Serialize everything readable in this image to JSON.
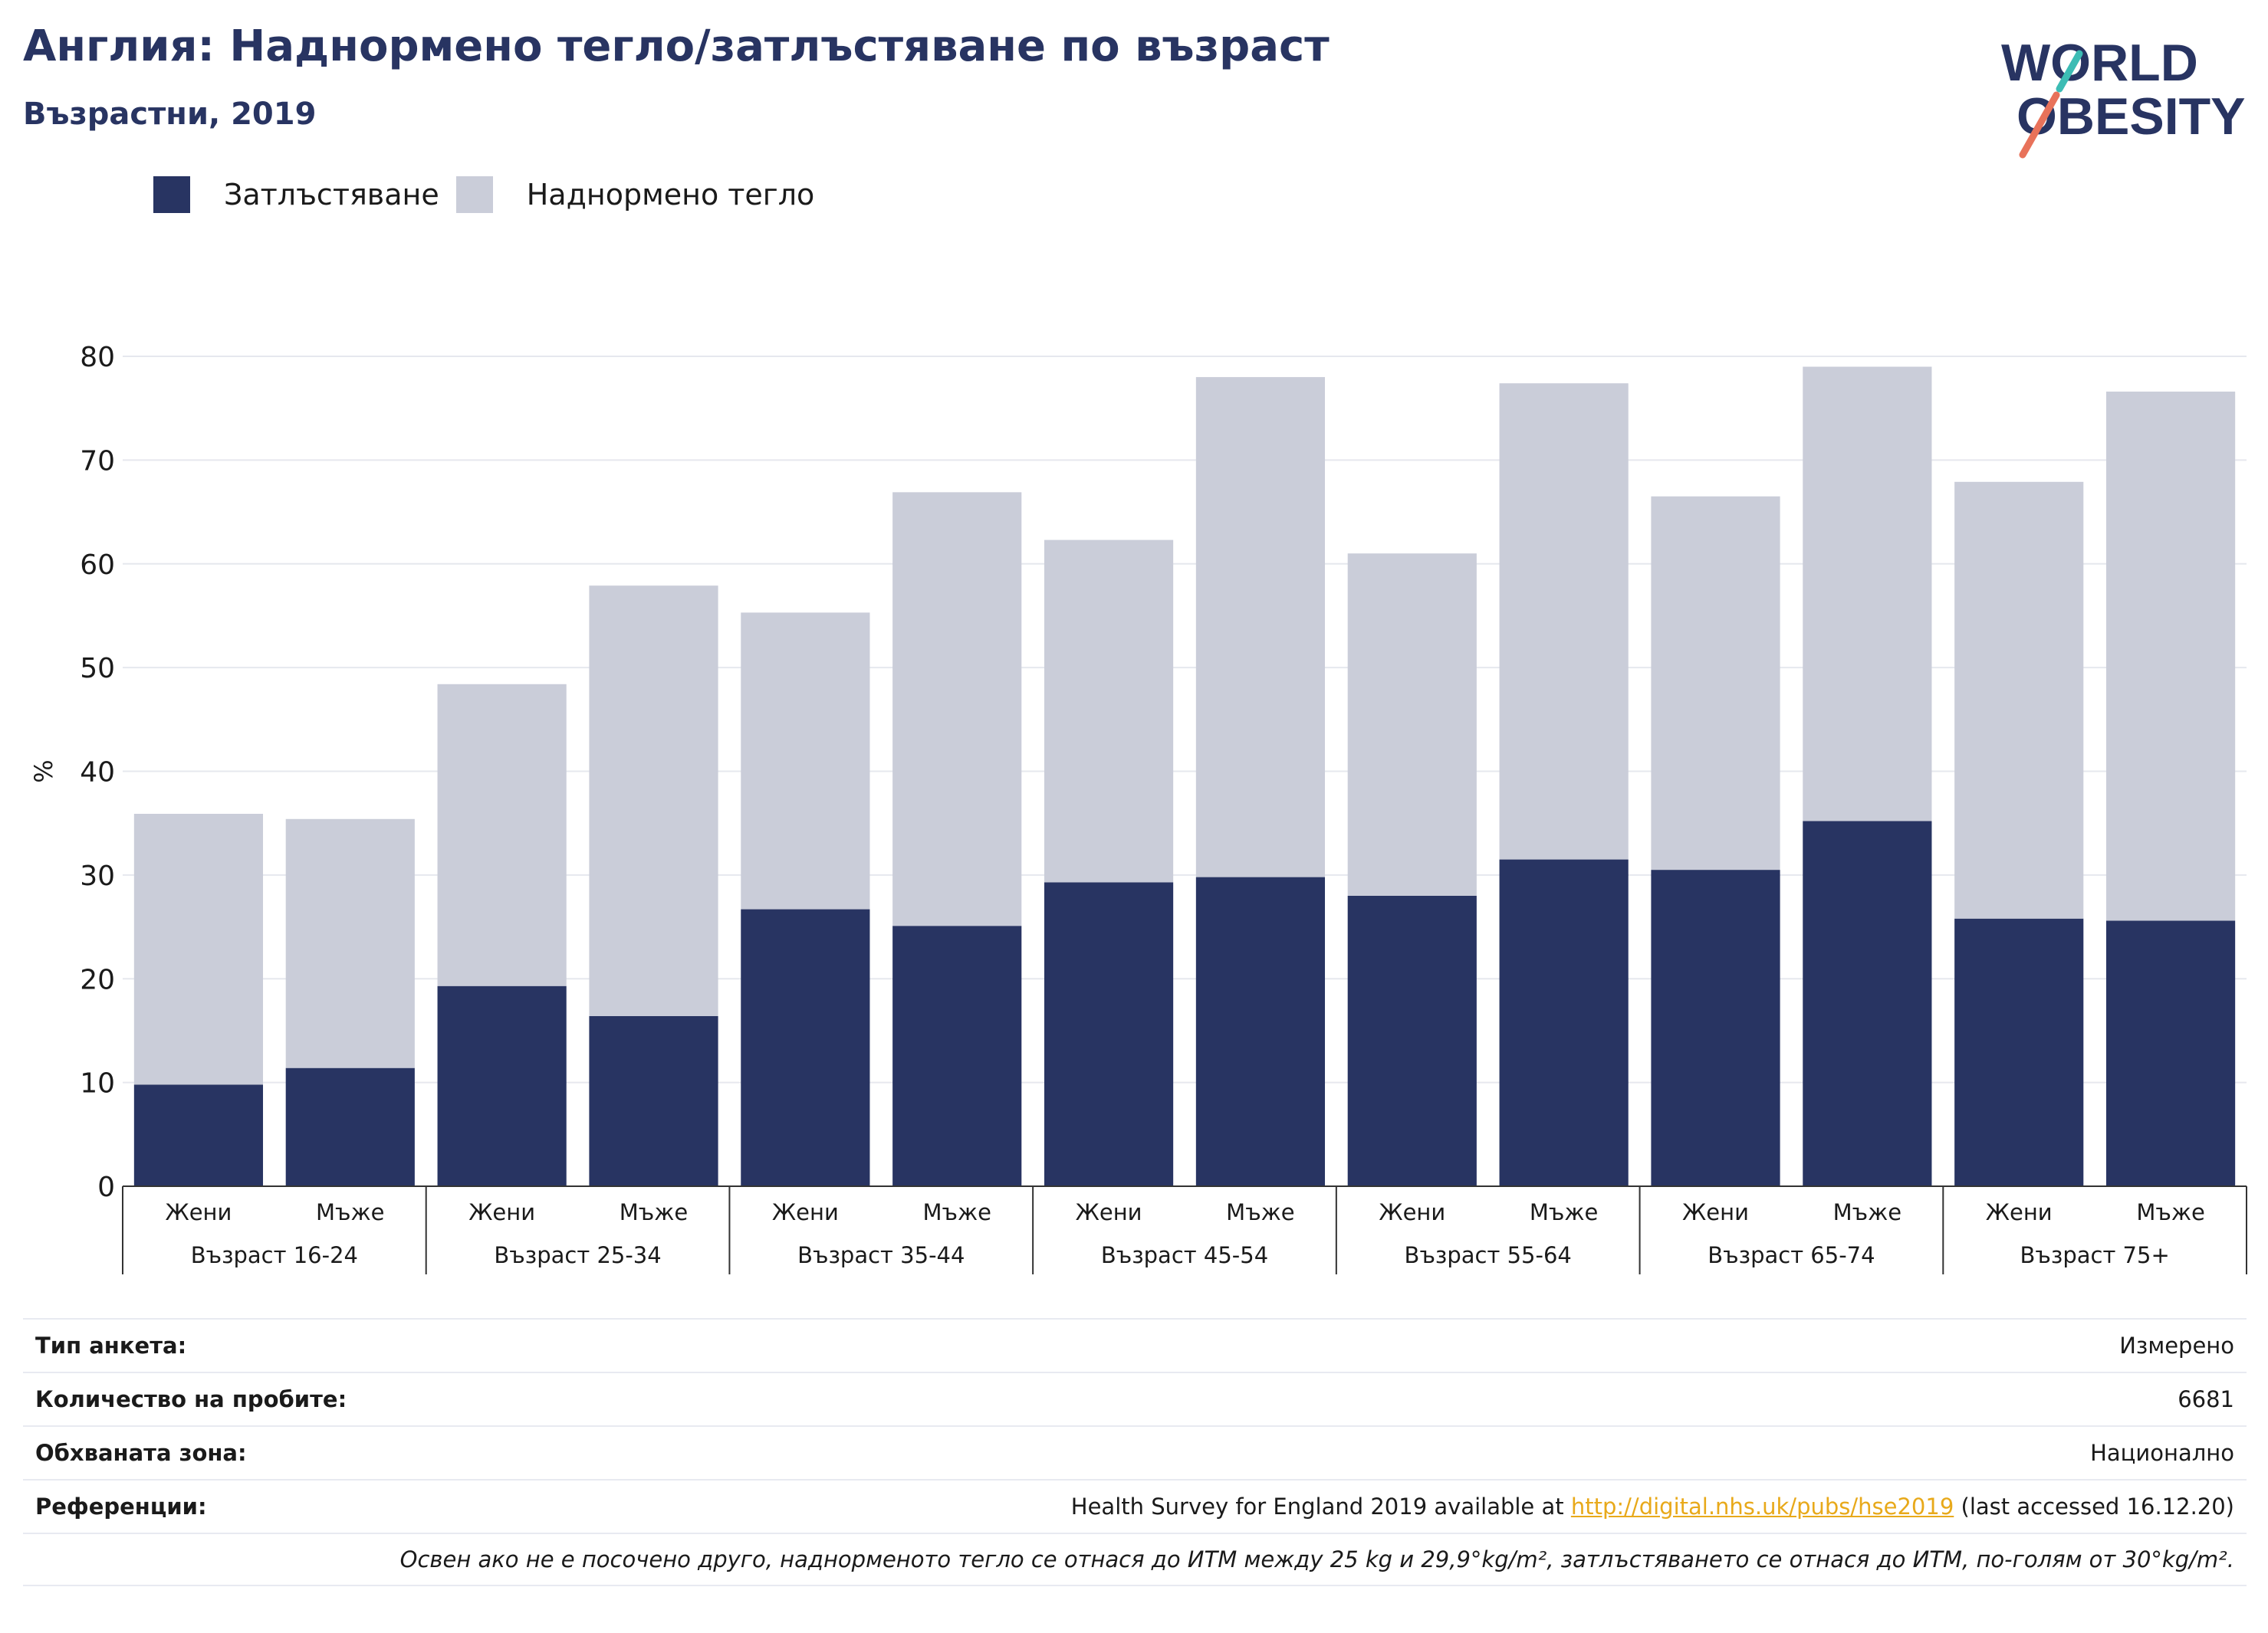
{
  "title": "Англия: Наднормено тегло/затлъстяване по възраст",
  "subtitle": "Възрастни, 2019",
  "logo": {
    "line1": "WORLD",
    "line2": "OBESITY"
  },
  "legend": [
    {
      "label": "Затлъстяване",
      "color": "#283462"
    },
    {
      "label": "Наднормено тегло",
      "color": "#cacdd9"
    }
  ],
  "chart_data": {
    "type": "bar",
    "stacked": true,
    "ylabel": "%",
    "ylim": [
      0,
      80
    ],
    "yticks": [
      0,
      10,
      20,
      30,
      40,
      50,
      60,
      70,
      80
    ],
    "grid": true,
    "legend_position": "top-left",
    "groups": [
      "Възраст 16-24",
      "Възраст 25-34",
      "Възраст 35-44",
      "Възраст 45-54",
      "Възраст 55-64",
      "Възраст 65-74",
      "Възраст 75+"
    ],
    "subcategories": [
      "Жени",
      "Мъже"
    ],
    "series": [
      {
        "name": "Затлъстяване",
        "color": "#283462",
        "values": [
          9.8,
          11.4,
          19.3,
          16.4,
          26.7,
          25.1,
          29.3,
          29.8,
          28.0,
          31.5,
          30.5,
          35.2,
          25.8,
          25.6
        ]
      },
      {
        "name": "Наднормено тегло",
        "color": "#cacdd9",
        "values": [
          26.1,
          24.0,
          29.1,
          41.5,
          28.6,
          41.8,
          33.0,
          48.2,
          33.0,
          45.9,
          36.0,
          43.8,
          42.1,
          51.0
        ]
      }
    ]
  },
  "info": {
    "rows": [
      {
        "label": "Тип анкета:",
        "value": "Измерено"
      },
      {
        "label": "Количество на пробите:",
        "value": "6681"
      },
      {
        "label": "Обхваната зона:",
        "value": "Национално"
      }
    ],
    "reference": {
      "label": "Референции:",
      "prefix": "Health Survey for England 2019 available at",
      "link": "http://digital.nhs.uk/pubs/hse2019",
      "suffix": "(last accessed 16.12.20)"
    },
    "footnote": "Освен ако не е посочено друго, наднорменото тегло се отнася до ИТМ между 25 kg и 29,9°kg/m², затлъстяването се отнася до ИТМ, по-голям от 30°kg/m²."
  }
}
